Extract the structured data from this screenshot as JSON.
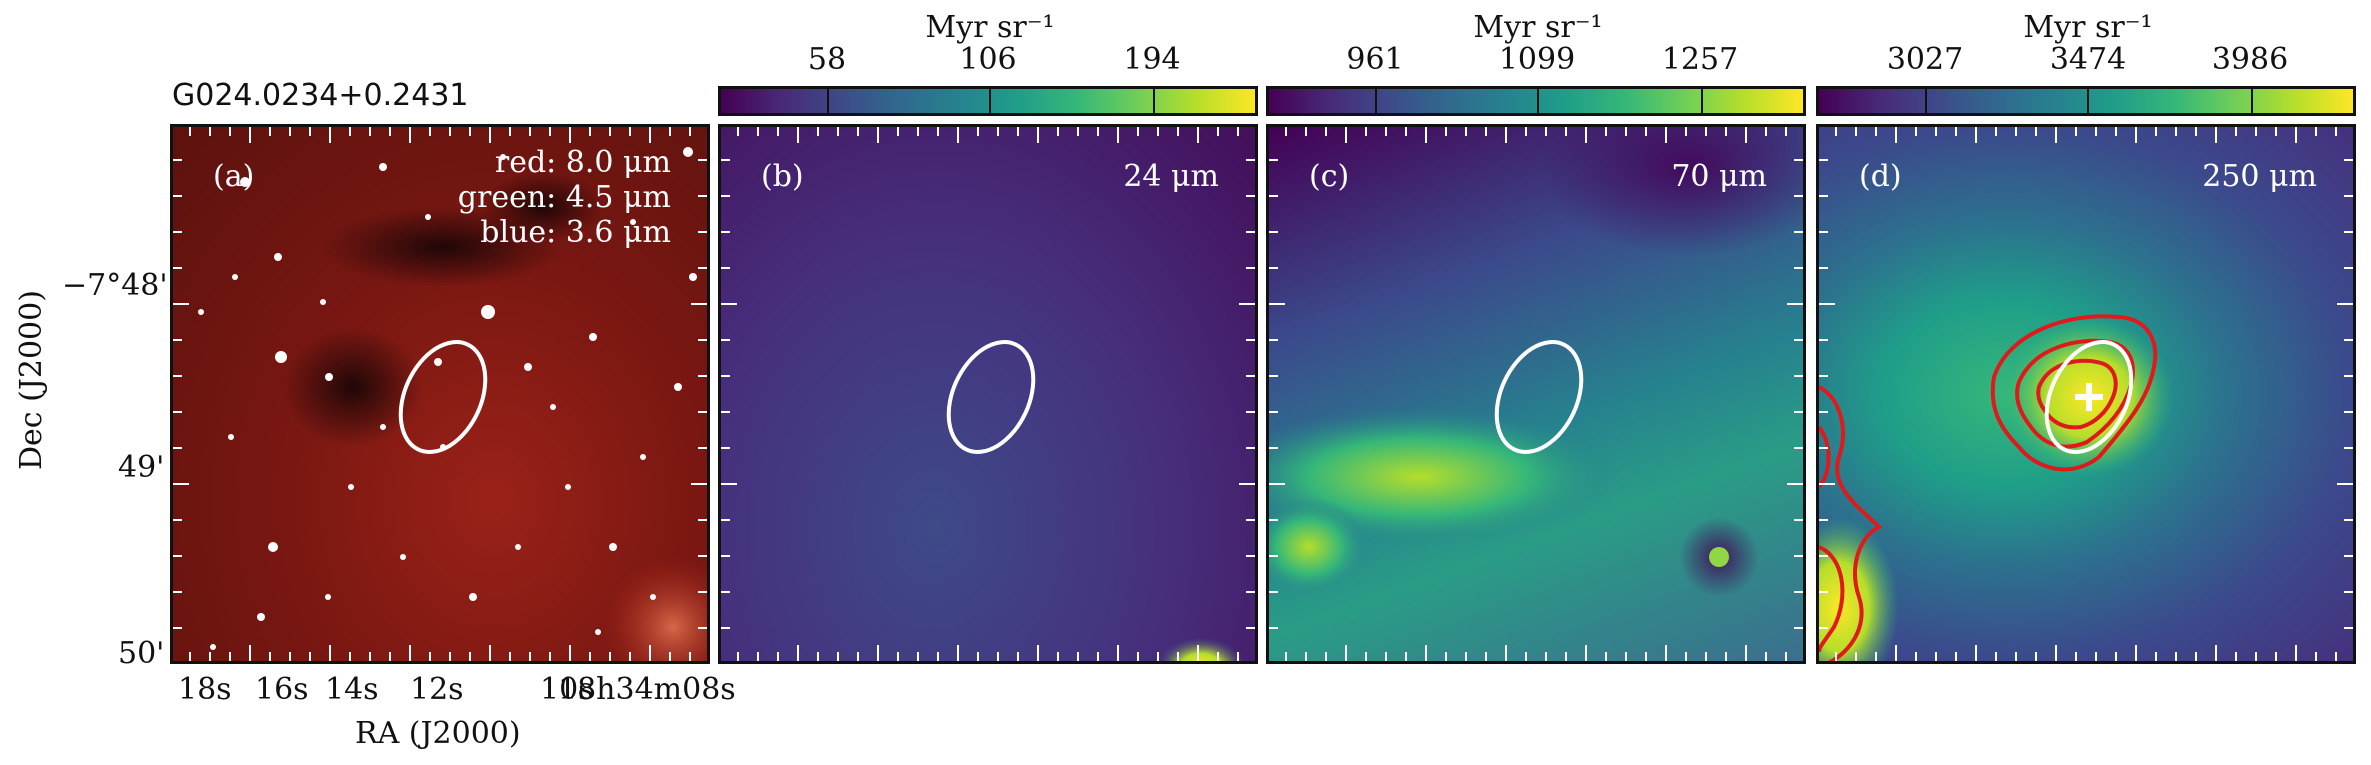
{
  "figure": {
    "source_name": "G024.0234+0.2431",
    "x_axis_title": "RA (J2000)",
    "y_axis_title": "Dec (J2000)",
    "ra_ticks": [
      "18s",
      "16s",
      "14s",
      "12s",
      "10s",
      "18h34m08s"
    ],
    "dec_ticks": [
      "−7°48'",
      "49'",
      "50'"
    ]
  },
  "panels": [
    {
      "id": "a",
      "label": "(a)",
      "legend": [
        "red: 8.0 μm",
        "green: 4.5 μm",
        "blue: 3.6 μm"
      ],
      "colors": {
        "background": "#7a1712",
        "ellipse": "#ffffff"
      }
    },
    {
      "id": "b",
      "label": "(b)",
      "wavelength": "24 μm",
      "colorbar": {
        "unit": "Myr sr⁻¹",
        "ticks": [
          "58",
          "106",
          "194"
        ]
      },
      "colors": {
        "background": "#46277e",
        "ellipse": "#ffffff"
      }
    },
    {
      "id": "c",
      "label": "(c)",
      "wavelength": "70 μm",
      "colorbar": {
        "unit": "Myr sr⁻¹",
        "ticks": [
          "961",
          "1099",
          "1257"
        ]
      },
      "colors": {
        "background": "#3b4a8c",
        "ellipse": "#ffffff"
      }
    },
    {
      "id": "d",
      "label": "(d)",
      "wavelength": "250 μm",
      "colorbar": {
        "unit": "Myr sr⁻¹",
        "ticks": [
          "3027",
          "3474",
          "3986"
        ]
      },
      "colors": {
        "background": "#2c7a8e",
        "ellipse": "#ffffff",
        "contour": "#e01a1a",
        "marker": "#ffffff"
      }
    }
  ]
}
